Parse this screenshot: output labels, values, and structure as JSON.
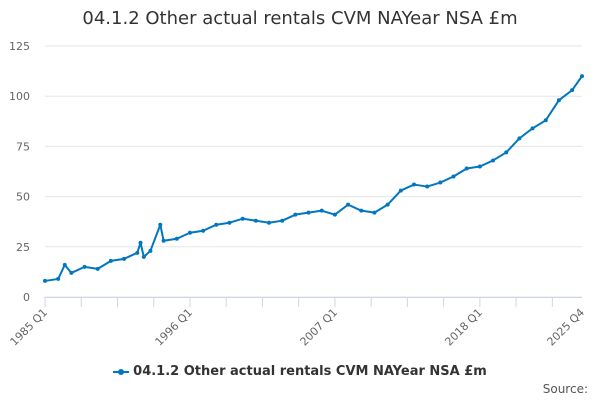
{
  "chart_data": {
    "type": "line",
    "title": "04.1.2 Other actual rentals CVM NAYear NSA £m",
    "xlabel": "",
    "ylabel": "",
    "ylim": [
      0,
      125
    ],
    "yticks": [
      0,
      25,
      50,
      75,
      100,
      125
    ],
    "xlim": [
      1985.0,
      2025.75
    ],
    "xtick_labels": [
      {
        "label": "1985 Q1",
        "x": 1985.0
      },
      {
        "label": "1996 Q1",
        "x": 1996.0
      },
      {
        "label": "2007 Q1",
        "x": 2007.0
      },
      {
        "label": "2018 Q1",
        "x": 2018.0
      },
      {
        "label": "2025 Q4",
        "x": 2025.75
      }
    ],
    "grid": true,
    "legend_position": "bottom",
    "series": [
      {
        "name": "04.1.2 Other actual rentals CVM NAYear NSA £m",
        "color": "#0077c0",
        "x": [
          1985,
          1986,
          1986.5,
          1987,
          1988,
          1989,
          1990,
          1991,
          1992,
          1992.25,
          1992.5,
          1993,
          1993.75,
          1994,
          1995,
          1996,
          1997,
          1998,
          1999,
          2000,
          2001,
          2002,
          2003,
          2004,
          2005,
          2006,
          2007,
          2008,
          2009,
          2010,
          2011,
          2012,
          2013,
          2014,
          2015,
          2016,
          2017,
          2018,
          2019,
          2020,
          2021,
          2022,
          2023,
          2024,
          2025,
          2025.75
        ],
        "values": [
          8,
          9,
          16,
          12,
          15,
          14,
          18,
          19,
          22,
          27,
          20,
          23,
          36,
          28,
          29,
          32,
          33,
          36,
          37,
          39,
          38,
          37,
          38,
          41,
          42,
          43,
          41,
          46,
          43,
          42,
          46,
          53,
          56,
          55,
          57,
          60,
          64,
          65,
          68,
          72,
          79,
          84,
          88,
          98,
          103,
          110
        ]
      }
    ]
  },
  "source_label": "Source:"
}
